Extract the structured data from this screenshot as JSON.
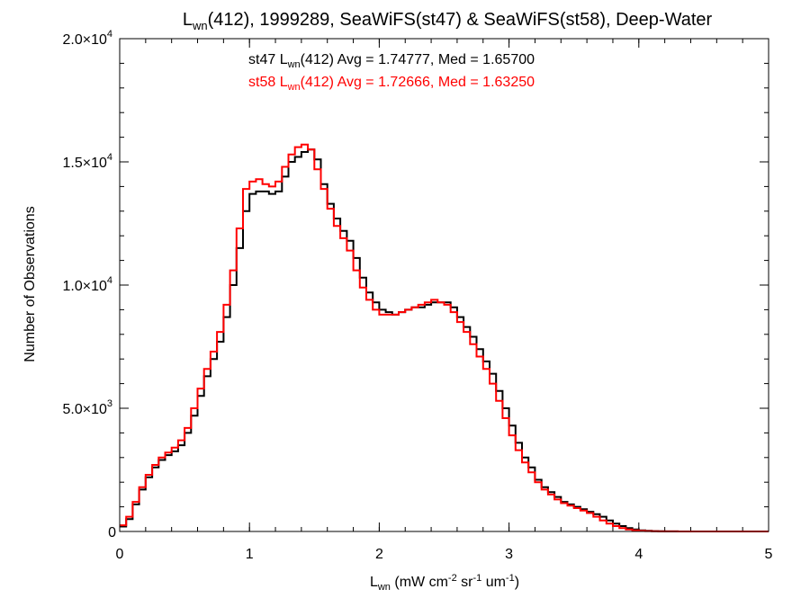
{
  "chart_data": {
    "type": "line",
    "title_main": "L",
    "title_sub": "wn",
    "title_rest": "(412), 1999289, SeaWiFS(st47) & SeaWiFS(st58), Deep-Water",
    "xlabel_main": "L",
    "xlabel_sub": "wn",
    "xlabel_p1": " (mW cm",
    "xlabel_s1": "-2",
    "xlabel_p2": " sr",
    "xlabel_s2": "-1",
    "xlabel_p3": " um",
    "xlabel_s3": "-1",
    "xlabel_p4": ")",
    "ylabel": "Number of Observations",
    "xlim": [
      0,
      5
    ],
    "ylim": [
      0,
      20000
    ],
    "x_ticks": [
      "0",
      "1",
      "2",
      "3",
      "4",
      "5"
    ],
    "y_ticks": [
      {
        "value": 0,
        "base": "0",
        "exp": ""
      },
      {
        "value": 5000,
        "base": "5.0×10",
        "exp": "3"
      },
      {
        "value": 10000,
        "base": "1.0×10",
        "exp": "4"
      },
      {
        "value": 15000,
        "base": "1.5×10",
        "exp": "4"
      },
      {
        "value": 20000,
        "base": "2.0×10",
        "exp": "4"
      }
    ],
    "annotations": [
      {
        "color": "#000000",
        "pre": "st47 L",
        "sub": "wn",
        "post": "(412) Avg = 1.74777, Med = 1.65700"
      },
      {
        "color": "#ff0000",
        "pre": "st58 L",
        "sub": "wn",
        "post": "(412) Avg = 1.72666, Med = 1.63250"
      }
    ],
    "series": [
      {
        "color": "#000000",
        "step": "steps",
        "x": [
          0,
          0.05,
          0.1,
          0.15,
          0.2,
          0.25,
          0.3,
          0.35,
          0.4,
          0.45,
          0.5,
          0.55,
          0.6,
          0.65,
          0.7,
          0.75,
          0.8,
          0.85,
          0.9,
          0.95,
          1.0,
          1.05,
          1.1,
          1.15,
          1.2,
          1.25,
          1.3,
          1.35,
          1.4,
          1.45,
          1.5,
          1.55,
          1.6,
          1.65,
          1.7,
          1.75,
          1.8,
          1.85,
          1.9,
          1.95,
          2.0,
          2.05,
          2.1,
          2.15,
          2.2,
          2.25,
          2.3,
          2.35,
          2.4,
          2.45,
          2.5,
          2.55,
          2.6,
          2.65,
          2.7,
          2.75,
          2.8,
          2.85,
          2.9,
          2.95,
          3.0,
          3.05,
          3.1,
          3.15,
          3.2,
          3.25,
          3.3,
          3.35,
          3.4,
          3.45,
          3.5,
          3.55,
          3.6,
          3.65,
          3.7,
          3.75,
          3.8,
          3.85,
          3.9,
          3.95,
          4.0,
          4.05,
          4.1,
          4.15,
          4.2,
          4.3,
          4.5,
          5.0
        ],
        "y": [
          200,
          500,
          1100,
          1700,
          2200,
          2600,
          2900,
          3100,
          3250,
          3500,
          4000,
          4700,
          5500,
          6300,
          7000,
          7700,
          8700,
          10000,
          11500,
          13000,
          13700,
          13800,
          13800,
          13700,
          13800,
          14400,
          15000,
          15200,
          15400,
          15500,
          15100,
          14100,
          13300,
          12700,
          12200,
          11800,
          11100,
          10300,
          9700,
          9300,
          9000,
          8900,
          8800,
          8900,
          9000,
          9100,
          9100,
          9200,
          9300,
          9300,
          9300,
          9100,
          8700,
          8300,
          7900,
          7400,
          6900,
          6400,
          5700,
          5000,
          4300,
          3600,
          3000,
          2600,
          2100,
          1800,
          1600,
          1400,
          1200,
          1100,
          1000,
          900,
          800,
          700,
          600,
          450,
          320,
          220,
          140,
          80,
          45,
          25,
          15,
          8,
          4,
          1,
          0,
          0
        ]
      },
      {
        "color": "#ff0000",
        "step": "steps",
        "x": [
          0,
          0.05,
          0.1,
          0.15,
          0.2,
          0.25,
          0.3,
          0.35,
          0.4,
          0.45,
          0.5,
          0.55,
          0.6,
          0.65,
          0.7,
          0.75,
          0.8,
          0.85,
          0.9,
          0.95,
          1.0,
          1.05,
          1.1,
          1.15,
          1.2,
          1.25,
          1.3,
          1.35,
          1.4,
          1.45,
          1.5,
          1.55,
          1.6,
          1.65,
          1.7,
          1.75,
          1.8,
          1.85,
          1.9,
          1.95,
          2.0,
          2.05,
          2.1,
          2.15,
          2.2,
          2.25,
          2.3,
          2.35,
          2.4,
          2.45,
          2.5,
          2.55,
          2.6,
          2.65,
          2.7,
          2.75,
          2.8,
          2.85,
          2.9,
          2.95,
          3.0,
          3.05,
          3.1,
          3.15,
          3.2,
          3.25,
          3.3,
          3.35,
          3.4,
          3.45,
          3.5,
          3.55,
          3.6,
          3.65,
          3.7,
          3.75,
          3.8,
          3.85,
          3.9,
          3.95,
          4.0,
          4.05,
          4.1,
          4.15,
          4.2,
          4.3,
          4.5,
          5.0
        ],
        "y": [
          250,
          600,
          1200,
          1800,
          2300,
          2700,
          3000,
          3200,
          3400,
          3700,
          4200,
          5000,
          5800,
          6600,
          7300,
          8100,
          9200,
          10600,
          12300,
          13900,
          14200,
          14300,
          14100,
          14000,
          14200,
          14800,
          15300,
          15600,
          15700,
          15500,
          14700,
          13900,
          13100,
          12400,
          11900,
          11400,
          10600,
          9900,
          9400,
          9000,
          8800,
          8800,
          8800,
          8900,
          9000,
          9100,
          9200,
          9300,
          9400,
          9300,
          9200,
          8900,
          8500,
          8100,
          7600,
          7100,
          6600,
          6000,
          5300,
          4600,
          3900,
          3300,
          2800,
          2400,
          2000,
          1700,
          1500,
          1300,
          1150,
          1050,
          950,
          850,
          750,
          600,
          450,
          320,
          220,
          140,
          80,
          45,
          25,
          15,
          8,
          4,
          2,
          1,
          0,
          0
        ]
      }
    ]
  }
}
